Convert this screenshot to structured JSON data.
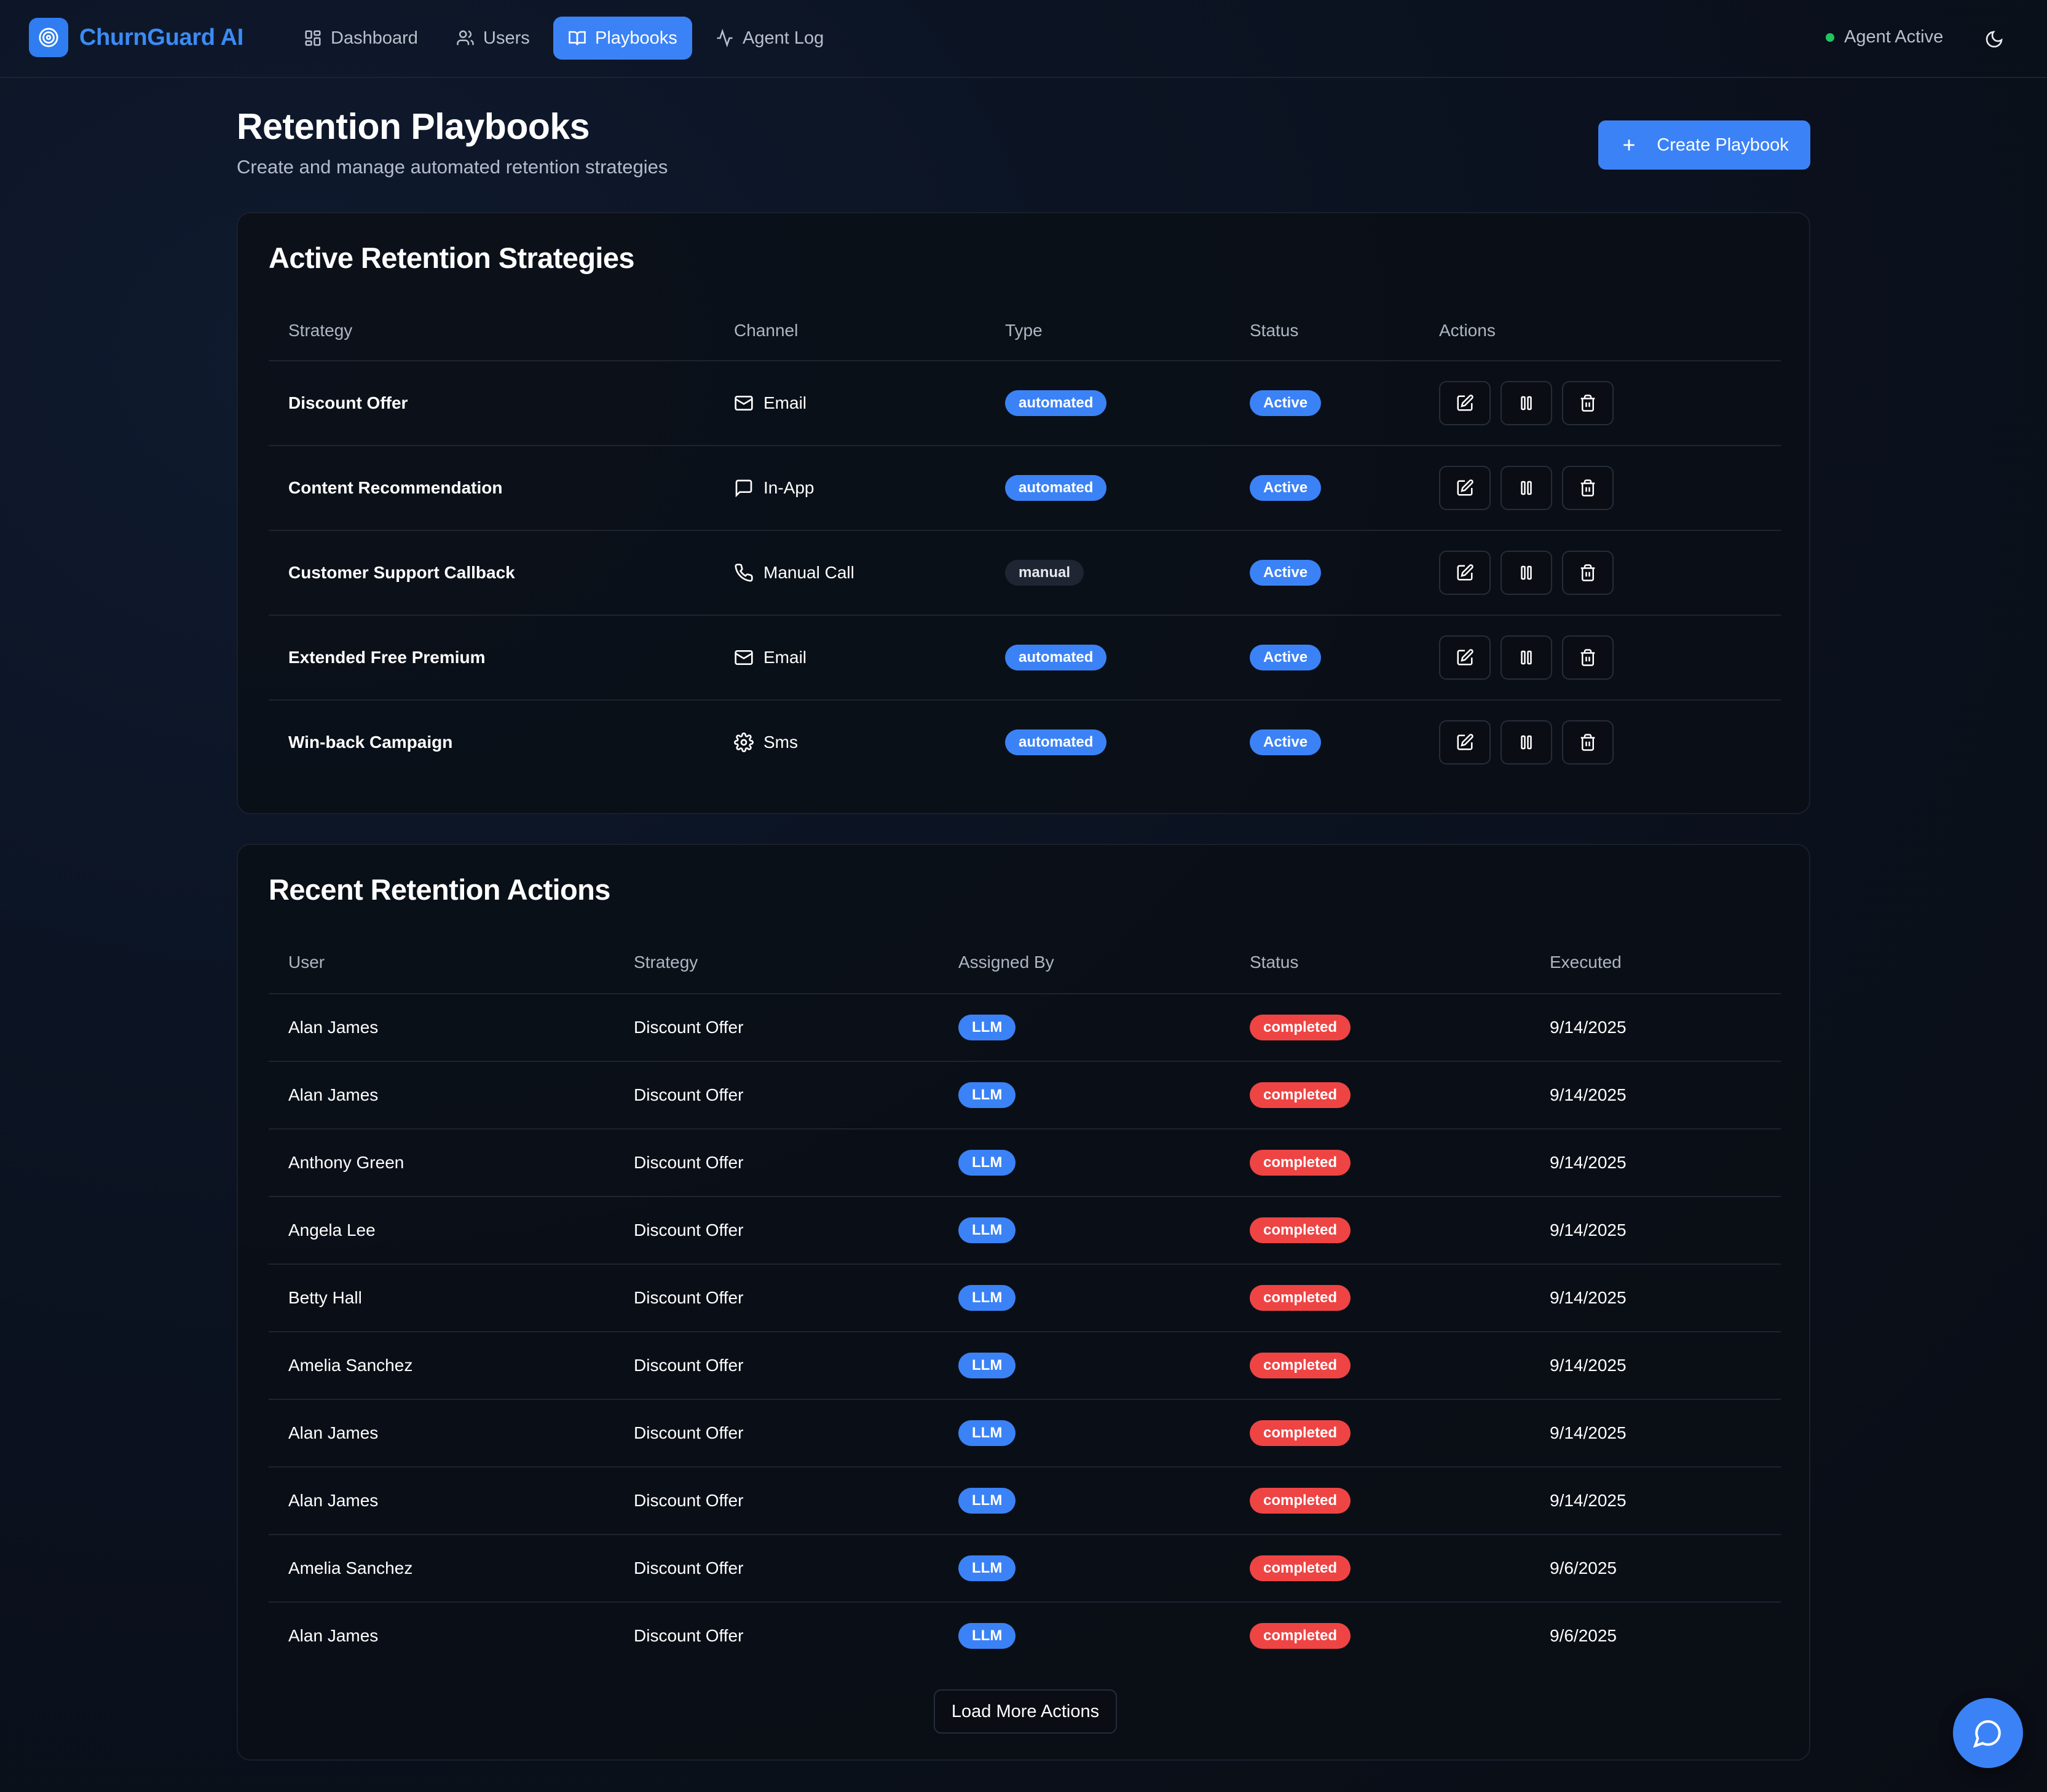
{
  "app": {
    "name": "ChurnGuard AI"
  },
  "nav": {
    "items": [
      {
        "label": "Dashboard",
        "icon": "grid-icon",
        "active": false
      },
      {
        "label": "Users",
        "icon": "users-icon",
        "active": false
      },
      {
        "label": "Playbooks",
        "icon": "book-icon",
        "active": true
      },
      {
        "label": "Agent Log",
        "icon": "activity-icon",
        "active": false
      }
    ],
    "agent_status": "Agent Active"
  },
  "header": {
    "title": "Retention Playbooks",
    "subtitle": "Create and manage automated retention strategies",
    "create_button": "Create Playbook"
  },
  "strategies": {
    "title": "Active Retention Strategies",
    "columns": [
      "Strategy",
      "Channel",
      "Type",
      "Status",
      "Actions"
    ],
    "rows": [
      {
        "strategy": "Discount Offer",
        "channel": "Email",
        "channel_icon": "mail-icon",
        "type": "automated",
        "status": "Active"
      },
      {
        "strategy": "Content Recommendation",
        "channel": "In-App",
        "channel_icon": "message-icon",
        "type": "automated",
        "status": "Active"
      },
      {
        "strategy": "Customer Support Callback",
        "channel": "Manual Call",
        "channel_icon": "phone-icon",
        "type": "manual",
        "status": "Active"
      },
      {
        "strategy": "Extended Free Premium",
        "channel": "Email",
        "channel_icon": "mail-icon",
        "type": "automated",
        "status": "Active"
      },
      {
        "strategy": "Win-back Campaign",
        "channel": "Sms",
        "channel_icon": "gear-icon",
        "type": "automated",
        "status": "Active"
      }
    ]
  },
  "actions": {
    "title": "Recent Retention Actions",
    "columns": [
      "User",
      "Strategy",
      "Assigned By",
      "Status",
      "Executed"
    ],
    "rows": [
      {
        "user": "Alan James",
        "strategy": "Discount Offer",
        "assigned_by": "LLM",
        "status": "completed",
        "executed": "9/14/2025"
      },
      {
        "user": "Alan James",
        "strategy": "Discount Offer",
        "assigned_by": "LLM",
        "status": "completed",
        "executed": "9/14/2025"
      },
      {
        "user": "Anthony Green",
        "strategy": "Discount Offer",
        "assigned_by": "LLM",
        "status": "completed",
        "executed": "9/14/2025"
      },
      {
        "user": "Angela Lee",
        "strategy": "Discount Offer",
        "assigned_by": "LLM",
        "status": "completed",
        "executed": "9/14/2025"
      },
      {
        "user": "Betty Hall",
        "strategy": "Discount Offer",
        "assigned_by": "LLM",
        "status": "completed",
        "executed": "9/14/2025"
      },
      {
        "user": "Amelia Sanchez",
        "strategy": "Discount Offer",
        "assigned_by": "LLM",
        "status": "completed",
        "executed": "9/14/2025"
      },
      {
        "user": "Alan James",
        "strategy": "Discount Offer",
        "assigned_by": "LLM",
        "status": "completed",
        "executed": "9/14/2025"
      },
      {
        "user": "Alan James",
        "strategy": "Discount Offer",
        "assigned_by": "LLM",
        "status": "completed",
        "executed": "9/14/2025"
      },
      {
        "user": "Amelia Sanchez",
        "strategy": "Discount Offer",
        "assigned_by": "LLM",
        "status": "completed",
        "executed": "9/6/2025"
      },
      {
        "user": "Alan James",
        "strategy": "Discount Offer",
        "assigned_by": "LLM",
        "status": "completed",
        "executed": "9/6/2025"
      }
    ],
    "load_more": "Load More Actions"
  },
  "colors": {
    "accent": "#3b82f6",
    "success_dot": "#22c55e",
    "danger": "#ef4444",
    "background": "#0b1220"
  }
}
